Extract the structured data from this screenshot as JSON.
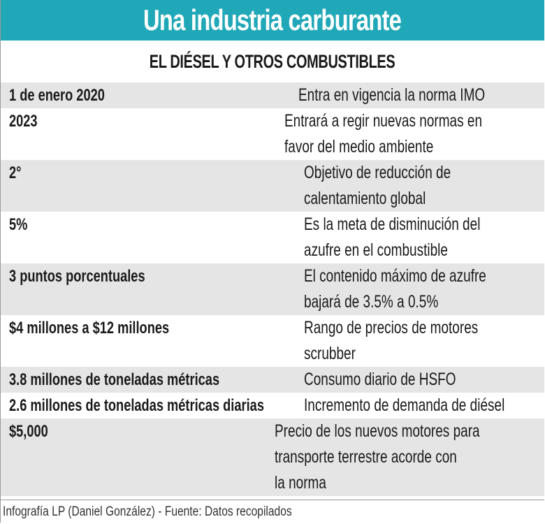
{
  "title": "Una industria carburante",
  "subtitle": "EL DIÉSEL Y OTROS COMBUSTIBLES",
  "colors": {
    "header": "#21a8b8",
    "row_alt": "#e5e5e5"
  },
  "rows": [
    {
      "key": "1 de enero 2020",
      "lines": [
        "Entra en vigencia la norma IMO"
      ]
    },
    {
      "key": "2023",
      "lines": [
        "Entrará a regir nuevas normas en",
        "favor del medio ambiente"
      ]
    },
    {
      "key": "2°",
      "lines": [
        "Objetivo de reducción de",
        "calentamiento global"
      ]
    },
    {
      "key": "5%",
      "lines": [
        "Es la meta de disminución del",
        "azufre en el combustible"
      ]
    },
    {
      "key": "3 puntos porcentuales",
      "lines": [
        "El contenido máximo de azufre",
        "bajará de 3.5% a 0.5%"
      ]
    },
    {
      "key": "$4 millones a $12 millones",
      "lines": [
        "Rango de precios de motores",
        "scrubber"
      ]
    },
    {
      "key": "3.8 millones de toneladas métricas",
      "lines": [
        "Consumo diario de HSFO"
      ]
    },
    {
      "key": "2.6 millones de toneladas métricas diarias",
      "lines": [
        "Incremento de demanda de diésel"
      ]
    },
    {
      "key": "$5,000",
      "lines": [
        "Precio de los nuevos motores para",
        "transporte terrestre acorde con",
        "la norma"
      ]
    }
  ],
  "footer": "Infografía LP (Daniel González) - Fuente: Datos recopilados"
}
